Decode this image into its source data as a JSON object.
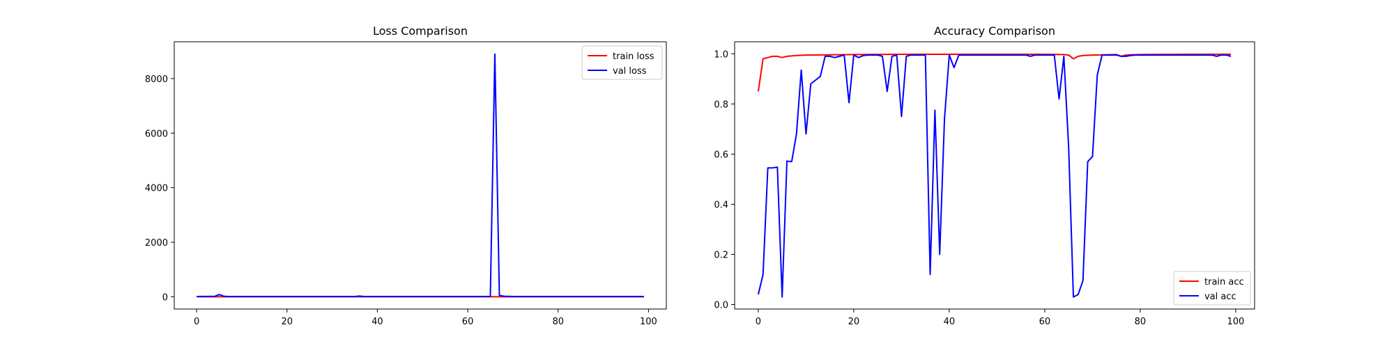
{
  "chart_data": [
    {
      "type": "line",
      "title": "Loss Comparison",
      "xlabel": "",
      "ylabel": "",
      "xlim": [
        -4.95,
        103.95
      ],
      "ylim": [
        -450,
        9350
      ],
      "xticks": [
        0,
        20,
        40,
        60,
        80,
        100
      ],
      "yticks": [
        0,
        2000,
        4000,
        6000,
        8000
      ],
      "legend": "upper-right",
      "grid": false,
      "series": [
        {
          "name": "train loss",
          "color": "#ff0000",
          "x": [
            0,
            99
          ],
          "y": [
            0.3,
            0.3
          ]
        },
        {
          "name": "val loss",
          "color": "#0000ff",
          "x": [
            0,
            4,
            5,
            6,
            7,
            35,
            36,
            37,
            64,
            65,
            66,
            67,
            68,
            70,
            99
          ],
          "y": [
            10,
            15,
            80,
            20,
            10,
            10,
            25,
            10,
            10,
            10,
            8900,
            50,
            20,
            10,
            10
          ]
        }
      ]
    },
    {
      "type": "line",
      "title": "Accuracy Comparison",
      "xlabel": "",
      "ylabel": "",
      "xlim": [
        -4.95,
        103.95
      ],
      "ylim": [
        -0.018,
        1.048
      ],
      "xticks": [
        0,
        20,
        40,
        60,
        80,
        100
      ],
      "yticks": [
        0.0,
        0.2,
        0.4,
        0.6,
        0.8,
        1.0
      ],
      "legend": "lower-right",
      "grid": false,
      "series": [
        {
          "name": "train acc",
          "color": "#ff0000",
          "x": [
            0,
            1,
            2,
            3,
            4,
            5,
            6,
            8,
            10,
            15,
            20,
            30,
            40,
            50,
            60,
            64,
            65,
            66,
            67,
            68,
            70,
            75,
            76,
            77,
            78,
            80,
            90,
            99
          ],
          "y": [
            0.85,
            0.98,
            0.985,
            0.99,
            0.99,
            0.985,
            0.99,
            0.993,
            0.995,
            0.996,
            0.997,
            0.998,
            0.998,
            0.998,
            0.998,
            0.997,
            0.995,
            0.98,
            0.99,
            0.993,
            0.995,
            0.997,
            0.99,
            0.995,
            0.996,
            0.997,
            0.998,
            0.998
          ]
        },
        {
          "name": "val acc",
          "color": "#0000ff",
          "x": [
            0,
            1,
            2,
            3,
            4,
            5,
            6,
            7,
            8,
            9,
            10,
            11,
            12,
            13,
            14,
            15,
            16,
            17,
            18,
            19,
            20,
            21,
            22,
            23,
            24,
            25,
            26,
            27,
            28,
            29,
            30,
            31,
            32,
            33,
            34,
            35,
            36,
            37,
            38,
            39,
            40,
            41,
            42,
            43,
            44,
            45,
            46,
            47,
            48,
            49,
            50,
            51,
            52,
            53,
            54,
            55,
            56,
            57,
            58,
            59,
            60,
            61,
            62,
            63,
            64,
            65,
            66,
            67,
            68,
            69,
            70,
            71,
            72,
            73,
            74,
            75,
            76,
            77,
            78,
            79,
            80,
            81,
            82,
            83,
            84,
            85,
            86,
            87,
            88,
            89,
            90,
            91,
            92,
            93,
            94,
            95,
            96,
            97,
            98,
            99
          ],
          "y": [
            0.04,
            0.12,
            0.545,
            0.545,
            0.548,
            0.03,
            0.572,
            0.57,
            0.68,
            0.935,
            0.68,
            0.88,
            0.895,
            0.91,
            0.99,
            0.99,
            0.985,
            0.99,
            0.995,
            0.805,
            0.995,
            0.985,
            0.993,
            0.995,
            0.995,
            0.995,
            0.99,
            0.85,
            0.99,
            0.995,
            0.75,
            0.99,
            0.995,
            0.995,
            0.995,
            0.995,
            0.12,
            0.775,
            0.2,
            0.74,
            0.995,
            0.945,
            0.995,
            0.995,
            0.995,
            0.995,
            0.995,
            0.995,
            0.995,
            0.995,
            0.995,
            0.995,
            0.995,
            0.995,
            0.995,
            0.995,
            0.995,
            0.99,
            0.995,
            0.995,
            0.995,
            0.995,
            0.995,
            0.82,
            0.99,
            0.63,
            0.03,
            0.04,
            0.095,
            0.57,
            0.59,
            0.915,
            0.995,
            0.995,
            0.995,
            0.995,
            0.99,
            0.99,
            0.993,
            0.995,
            0.995,
            0.995,
            0.995,
            0.995,
            0.995,
            0.995,
            0.995,
            0.995,
            0.995,
            0.995,
            0.995,
            0.995,
            0.995,
            0.995,
            0.995,
            0.995,
            0.99,
            0.995,
            0.995,
            0.99
          ]
        }
      ]
    }
  ]
}
